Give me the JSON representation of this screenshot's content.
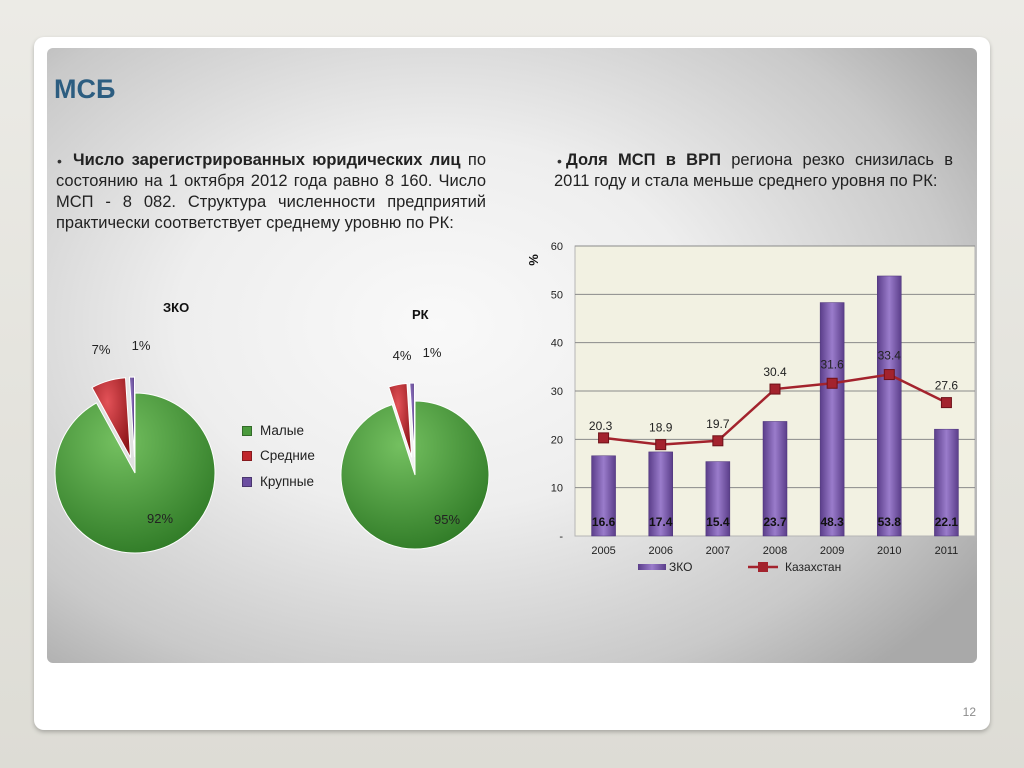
{
  "slide": {
    "title": "МСБ",
    "page_number": "12"
  },
  "left_text": {
    "bullet": "•",
    "bold1": "Число з",
    "bold2": "арегистрированных юридических лиц",
    "rest": " по состоянию на 1 октября 2012 года равно 8 160. Число МСП - 8 082. Структура численности предприятий практически соответствует среднему уровню по РК:"
  },
  "right_text": {
    "bullet": "•",
    "bold": "Доля МСП в ВРП",
    "rest": " региона резко снизилась в 2011 году и стала меньше среднего уровня по РК:"
  },
  "pie_legend": [
    {
      "label": "Малые",
      "color": "#4a9a3c"
    },
    {
      "label": "Средние",
      "color": "#c0262c"
    },
    {
      "label": "Крупные",
      "color": "#6b4ea0"
    }
  ],
  "chart_data": [
    {
      "type": "pie",
      "title": "ЗКО",
      "categories": [
        "Малые",
        "Средние",
        "Крупные"
      ],
      "values": [
        92,
        7,
        1
      ],
      "labels": [
        "92%",
        "7%",
        "1%"
      ],
      "colors": [
        "#4a9a3c",
        "#c0262c",
        "#6b4ea0"
      ],
      "exploded": [
        "Средние",
        "Крупные"
      ]
    },
    {
      "type": "pie",
      "title": "РК",
      "categories": [
        "Малые",
        "Средние",
        "Крупные"
      ],
      "values": [
        95,
        4,
        1
      ],
      "labels": [
        "95%",
        "4%",
        "1%"
      ],
      "colors": [
        "#4a9a3c",
        "#c0262c",
        "#6b4ea0"
      ],
      "exploded": [
        "Средние",
        "Крупные"
      ]
    },
    {
      "type": "bar",
      "title": "",
      "ylabel": "%",
      "categories": [
        "2005",
        "2006",
        "2007",
        "2008",
        "2009",
        "2010",
        "2011"
      ],
      "ylim": [
        0,
        60
      ],
      "yticks": [
        "-",
        "10",
        "20",
        "30",
        "40",
        "50",
        "60"
      ],
      "grid": true,
      "legend_position": "bottom",
      "series": [
        {
          "name": "ЗКО",
          "kind": "bar",
          "color": "#7b5ca8",
          "values": [
            16.6,
            17.4,
            15.4,
            23.7,
            48.3,
            53.8,
            22.1
          ],
          "value_labels": [
            "16.6",
            "17.4",
            "15.4",
            "23.7",
            "48.3",
            "53.8",
            "22.1"
          ]
        },
        {
          "name": "Казахстан",
          "kind": "line",
          "color": "#a3232d",
          "values": [
            20.3,
            18.9,
            19.7,
            30.4,
            31.6,
            33.4,
            27.6
          ],
          "value_labels": [
            "20.3",
            "18.9",
            "19.7",
            "30.4",
            "31.6",
            "33.4",
            "27.6"
          ]
        }
      ]
    }
  ]
}
